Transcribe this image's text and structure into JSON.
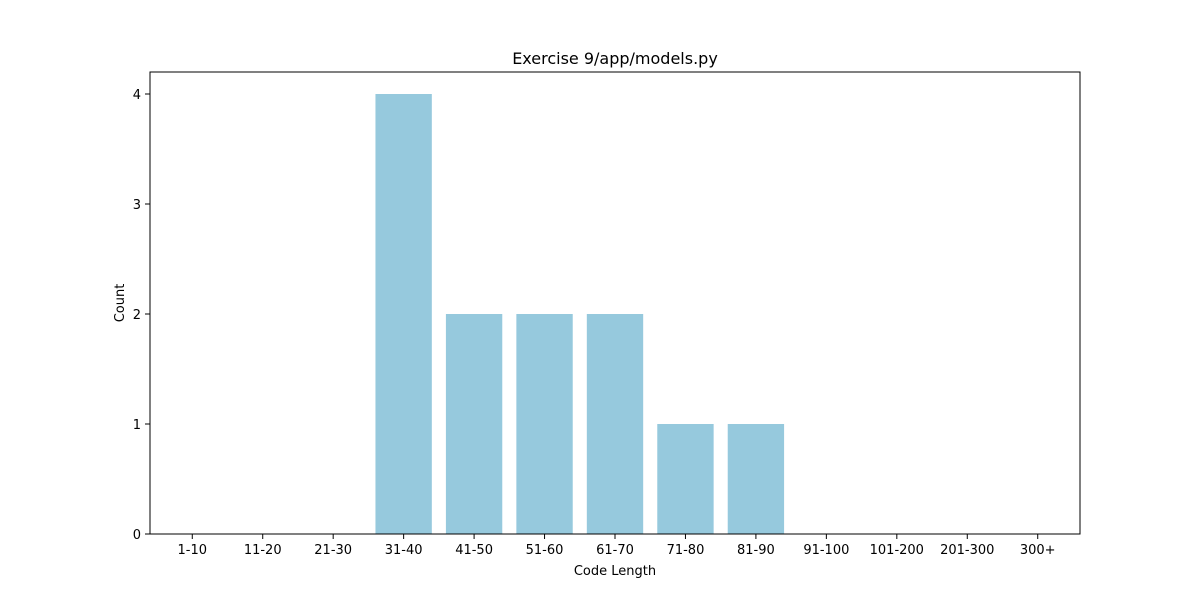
{
  "chart_data": {
    "type": "bar",
    "title": "Exercise 9/app/models.py",
    "xlabel": "Code Length",
    "ylabel": "Count",
    "categories": [
      "1-10",
      "11-20",
      "21-30",
      "31-40",
      "41-50",
      "51-60",
      "61-70",
      "71-80",
      "81-90",
      "91-100",
      "101-200",
      "201-300",
      "300+"
    ],
    "values": [
      0,
      0,
      0,
      4,
      2,
      2,
      2,
      1,
      1,
      0,
      0,
      0,
      0
    ],
    "ylim": [
      0,
      4.2
    ],
    "yticks": [
      0,
      1,
      2,
      3,
      4
    ],
    "grid": false,
    "legend": "none",
    "bar_color": "#96c9dd"
  }
}
